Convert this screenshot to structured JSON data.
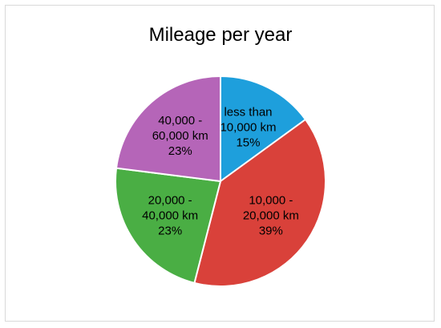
{
  "chart_data": {
    "type": "pie",
    "title": "Mileage per year",
    "start_angle_deg": 0,
    "direction": "clockwise",
    "slices": [
      {
        "label_lines": [
          "less than",
          "10,000 km",
          "15%"
        ],
        "value": 15,
        "color": "#1e9fdc"
      },
      {
        "label_lines": [
          "10,000 -",
          "20,000 km",
          "39%"
        ],
        "value": 39,
        "color": "#d9413a"
      },
      {
        "label_lines": [
          "20,000 -",
          "40,000 km",
          "23%"
        ],
        "value": 23,
        "color": "#4aae44"
      },
      {
        "label_lines": [
          "40,000 -",
          "60,000 km",
          "23%"
        ],
        "value": 23,
        "color": "#b565b8"
      }
    ]
  }
}
